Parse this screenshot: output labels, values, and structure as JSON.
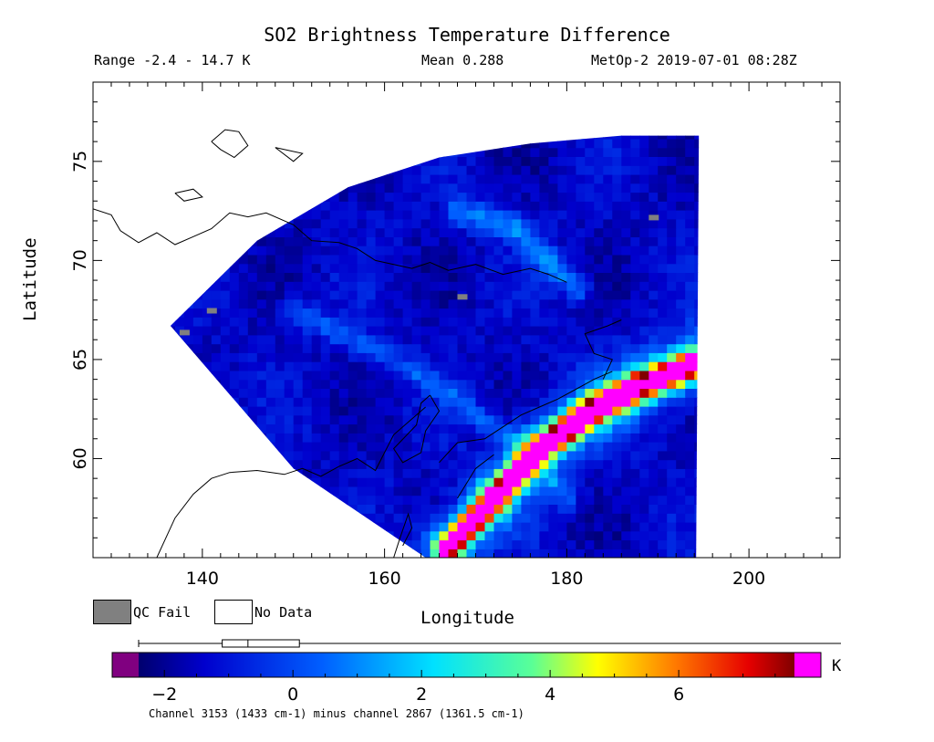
{
  "chart_data": {
    "type": "heatmap",
    "title": "SO2 Brightness Temperature Difference",
    "info": {
      "range": "Range -2.4 - 14.7 K",
      "mean": "Mean 0.288",
      "satellite_time": "MetOp-2 2019-07-01 08:28Z"
    },
    "xlabel": "Longitude",
    "ylabel": "Latitude",
    "xlim": [
      128,
      210
    ],
    "ylim": [
      55,
      79
    ],
    "xticks": [
      140,
      160,
      180,
      200
    ],
    "yticks": [
      60,
      65,
      70,
      75
    ],
    "swath_polygon": [
      [
        136.5,
        66.7
      ],
      [
        146,
        71
      ],
      [
        156,
        73.7
      ],
      [
        166,
        75.2
      ],
      [
        176,
        75.9
      ],
      [
        186,
        76.3
      ],
      [
        194.5,
        76.3
      ],
      [
        194.2,
        55
      ],
      [
        164.5,
        55
      ],
      [
        150,
        59.5
      ],
      [
        136.5,
        66.7
      ]
    ],
    "features": [
      {
        "name": "plume",
        "type": "band",
        "path": [
          [
            167,
            55.5
          ],
          [
            172,
            58
          ],
          [
            177,
            60.5
          ],
          [
            183,
            62.5
          ],
          [
            188,
            63.7
          ],
          [
            194,
            64.8
          ]
        ],
        "value": 6.5
      },
      {
        "name": "trough",
        "type": "band",
        "path": [
          [
            150,
            67.5
          ],
          [
            163,
            64.5
          ],
          [
            174,
            61
          ],
          [
            180,
            58
          ]
        ],
        "value": 0.8
      },
      {
        "name": "north-arc",
        "type": "band",
        "path": [
          [
            168,
            72.5
          ],
          [
            174,
            71.8
          ],
          [
            178,
            70
          ],
          [
            181,
            68.6
          ]
        ],
        "value": 1.0
      }
    ],
    "qc_fail": [
      [
        140.5,
        67.3
      ],
      [
        137.5,
        66.2
      ],
      [
        168,
        68
      ],
      [
        189,
        72
      ]
    ],
    "colorbar": {
      "vmin": -2.4,
      "vmax": 7.8,
      "ticks": [
        -2,
        0,
        2,
        4,
        6
      ],
      "under_color": "#800080",
      "over_color": "#ff00ff",
      "unit": "K",
      "box_plot": {
        "min": -2.4,
        "q1": -1.1,
        "median": -0.7,
        "q3": 0.1,
        "max": 14.7
      },
      "caption": "Channel 3153 (1433 cm-1) minus channel 2867 (1361.5 cm-1)"
    },
    "legend": [
      {
        "label": "QC Fail",
        "color": "#808080"
      },
      {
        "label": "No Data",
        "color": "#ffffff"
      }
    ]
  }
}
